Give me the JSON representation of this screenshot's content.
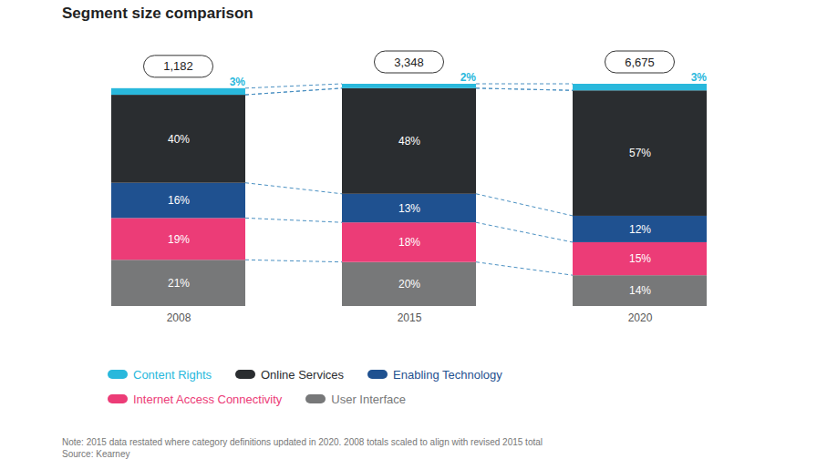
{
  "chart_data": {
    "type": "bar",
    "stacked": true,
    "data_labels": true,
    "tick_labels": "x",
    "legend": "bottom",
    "title": "Segment size comparison",
    "categories": [
      "2008",
      "2015",
      "2020"
    ],
    "series": [
      {
        "name": "Content Rights",
        "color": "#29b8dc",
        "values": [
          3,
          2,
          3
        ],
        "value_labels": [
          "3%",
          "2%",
          "3%"
        ]
      },
      {
        "name": "Online Services",
        "color": "#2a2d30",
        "values": [
          40,
          48,
          57
        ],
        "value_labels": [
          "40%",
          "48%",
          "57%"
        ]
      },
      {
        "name": "Enabling Technology",
        "color": "#1f5190",
        "values": [
          16,
          13,
          12
        ],
        "value_labels": [
          "16%",
          "13%",
          "12%"
        ]
      },
      {
        "name": "Internet Access Connectivity",
        "color": "#ec3c77",
        "values": [
          19,
          18,
          15
        ],
        "value_labels": [
          "19%",
          "18%",
          "15%"
        ]
      },
      {
        "name": "User Interface",
        "color": "#777879",
        "values": [
          21,
          20,
          14
        ],
        "value_labels": [
          "21%",
          "20%",
          "14%"
        ]
      }
    ],
    "totals": {
      "values": [
        1182,
        3348,
        6675
      ],
      "value_labels": [
        "1,182",
        "3,348",
        "6,675"
      ]
    },
    "note": "Note: 2015 data restated where category definitions updated in 2020. 2008 totals scaled to align with revised 2015 total",
    "source": "Source: Kearney"
  }
}
